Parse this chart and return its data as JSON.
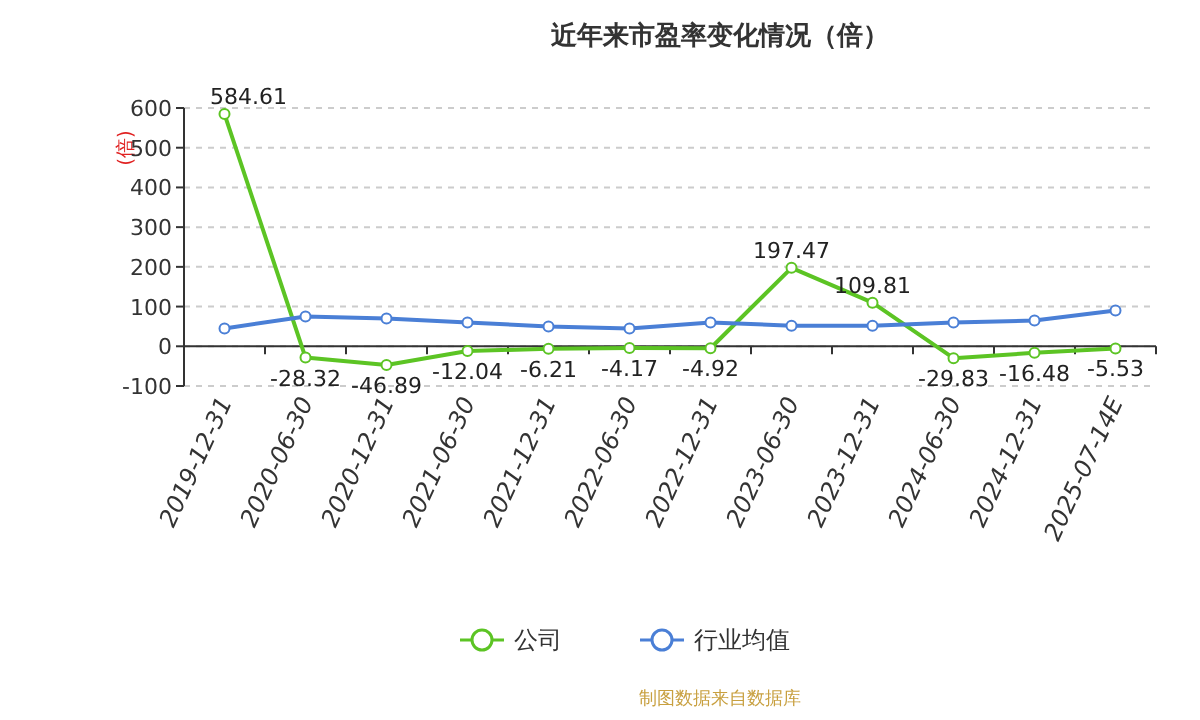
{
  "chart_data": {
    "type": "line",
    "title": "近年来市盈率变化情况（倍）",
    "ylabel": "(倍)",
    "categories": [
      "2019-12-31",
      "2020-06-30",
      "2020-12-31",
      "2021-06-30",
      "2021-12-31",
      "2022-06-30",
      "2022-12-31",
      "2023-06-30",
      "2023-12-31",
      "2024-06-30",
      "2024-12-31",
      "2025-07-14E"
    ],
    "series": [
      {
        "name": "公司",
        "color": "#5cc424",
        "values": [
          584.61,
          -28.32,
          -46.89,
          -12.04,
          -6.21,
          -4.17,
          -4.92,
          197.47,
          109.81,
          -29.83,
          -16.48,
          -5.53
        ],
        "value_labels": [
          "584.61",
          "-28.32",
          "-46.89",
          "-12.04",
          "-6.21",
          "-4.17",
          "-4.92",
          "197.47",
          "109.81",
          "-29.83",
          "-16.48",
          "-5.53"
        ]
      },
      {
        "name": "行业均值",
        "color": "#4a7fd6",
        "values": [
          45,
          75,
          70,
          60,
          50,
          45,
          60,
          52,
          52,
          60,
          65,
          90
        ]
      }
    ],
    "ylim": [
      -100,
      600
    ],
    "yticks": [
      -100,
      0,
      100,
      200,
      300,
      400,
      500,
      600
    ],
    "grid": "y",
    "legend": "bottom",
    "marker": "circle",
    "line_style": "solid",
    "annotations": [
      "制图数据来自数据库"
    ]
  }
}
